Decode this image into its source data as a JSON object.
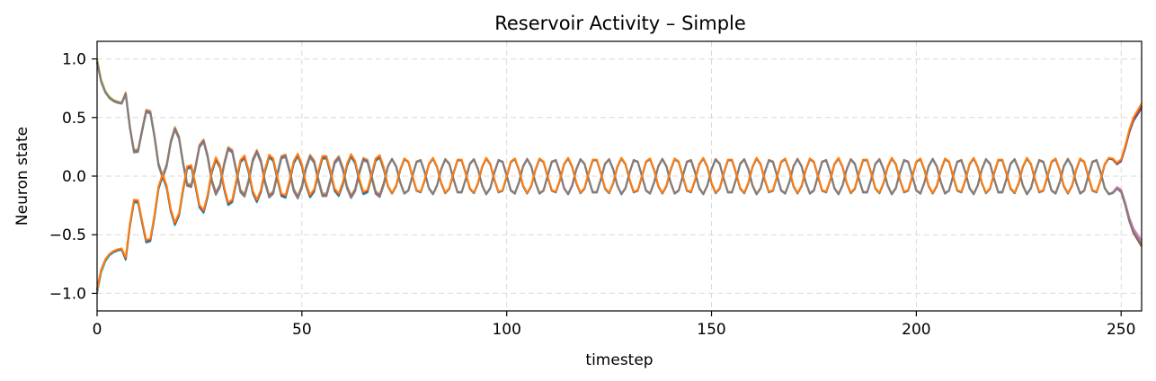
{
  "chart_data": {
    "type": "line",
    "title": "Reservoir Activity – Simple",
    "xlabel": "timestep",
    "ylabel": "Neuron state",
    "xlim": [
      0,
      255
    ],
    "ylim": [
      -1.15,
      1.15
    ],
    "xticks": [
      0,
      50,
      100,
      150,
      200,
      250
    ],
    "xtick_labels": [
      "0",
      "50",
      "100",
      "150",
      "200",
      "250"
    ],
    "yticks": [
      1.0,
      0.5,
      0.0,
      -0.5,
      -1.0
    ],
    "ytick_labels": [
      "1.0",
      "0.5",
      "0.0",
      "−0.5",
      "−1.0"
    ],
    "grid": true,
    "legend": "none",
    "timesteps": 256,
    "oscillation_period_steps": 6.6,
    "series": [
      {
        "group": "positive",
        "color": "#bcbd22",
        "start_value": 1.0,
        "mid_amplitude": 0.15,
        "end_value": -0.6
      },
      {
        "group": "positive",
        "color": "#e377c2",
        "start_value": 0.97,
        "mid_amplitude": 0.15,
        "end_value": -0.55
      },
      {
        "group": "positive",
        "color": "#8c564b",
        "start_value": 0.98,
        "mid_amplitude": 0.15,
        "end_value": -0.6
      },
      {
        "group": "positive",
        "color": "#7f7f7f",
        "start_value": 0.99,
        "mid_amplitude": 0.15,
        "end_value": -0.58
      },
      {
        "group": "negative",
        "color": "#17becf",
        "start_value": -1.0,
        "mid_amplitude": 0.15,
        "end_value": 0.6
      },
      {
        "group": "negative",
        "color": "#1f77b4",
        "start_value": -0.98,
        "mid_amplitude": 0.15,
        "end_value": 0.58
      },
      {
        "group": "negative",
        "color": "#d62728",
        "start_value": -0.97,
        "mid_amplitude": 0.15,
        "end_value": 0.6
      },
      {
        "group": "negative",
        "color": "#ff7f0e",
        "start_value": -0.99,
        "mid_amplitude": 0.15,
        "end_value": 0.62
      }
    ]
  }
}
